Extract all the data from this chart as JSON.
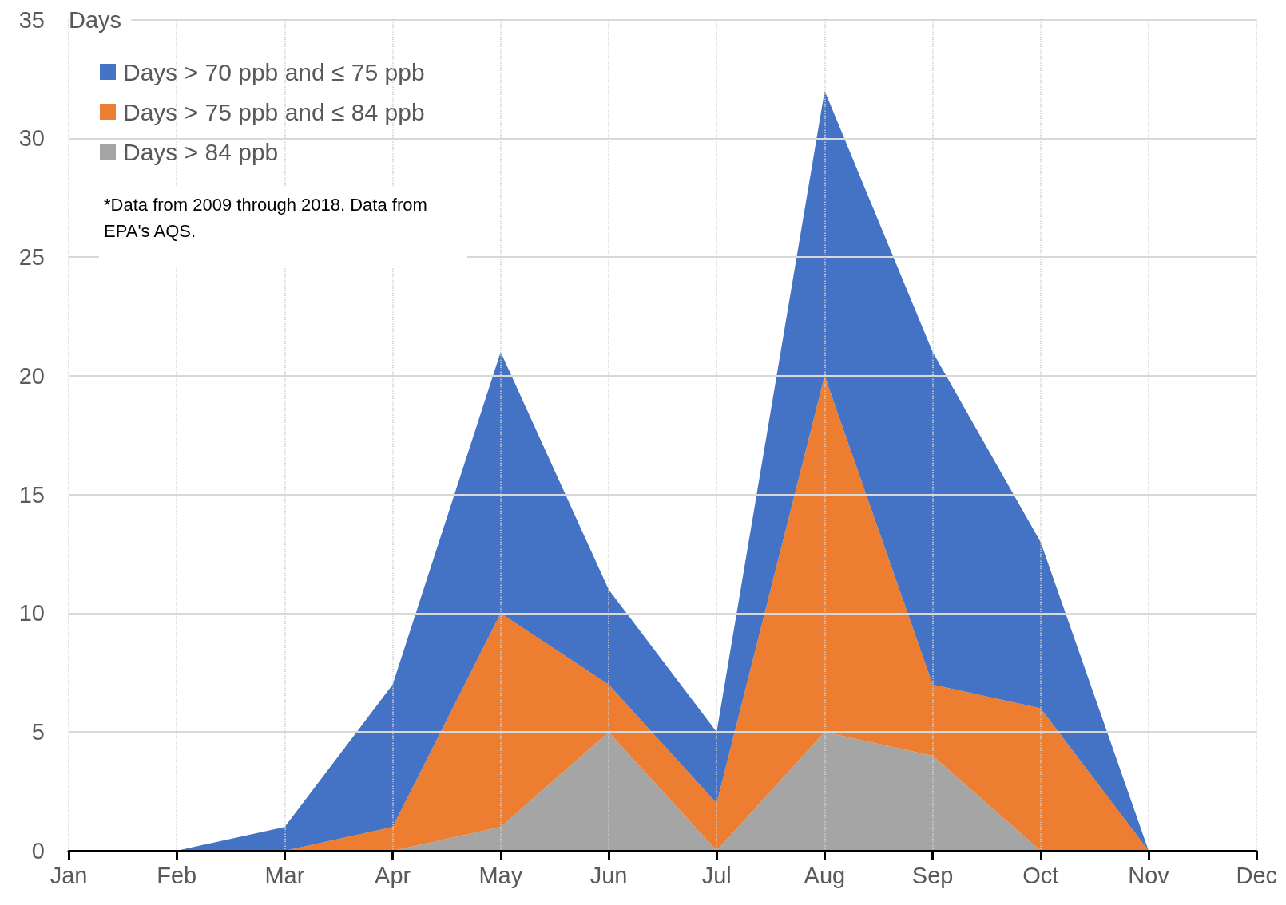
{
  "chart_data": {
    "type": "area",
    "stacked": true,
    "ylabel": "Days",
    "categories": [
      "Jan",
      "Feb",
      "Mar",
      "Apr",
      "May",
      "Jun",
      "Jul",
      "Aug",
      "Sep",
      "Oct",
      "Nov",
      "Dec"
    ],
    "series": [
      {
        "name": "Days > 84 ppb",
        "color": "#a5a5a5",
        "values": [
          null,
          0,
          0,
          0,
          1,
          5,
          0,
          5,
          4,
          0,
          0,
          null
        ]
      },
      {
        "name": "Days > 75 ppb and ≤ 84 ppb",
        "color": "#ed7d31",
        "values": [
          null,
          0,
          0,
          1,
          9,
          2,
          2,
          15,
          3,
          6,
          0,
          null
        ]
      },
      {
        "name": "Days > 70 ppb and ≤ 75 ppb",
        "color": "#4472c4",
        "values": [
          null,
          0,
          1,
          6,
          11,
          4,
          3,
          12,
          14,
          7,
          0,
          null
        ]
      }
    ],
    "ylim": [
      0,
      35
    ],
    "yticks": [
      0,
      5,
      10,
      15,
      20,
      25,
      30,
      35
    ],
    "grid": true,
    "legend": "top left",
    "annotations": [
      "*Data from 2009 through 2018. Data from EPA's AQS."
    ]
  }
}
